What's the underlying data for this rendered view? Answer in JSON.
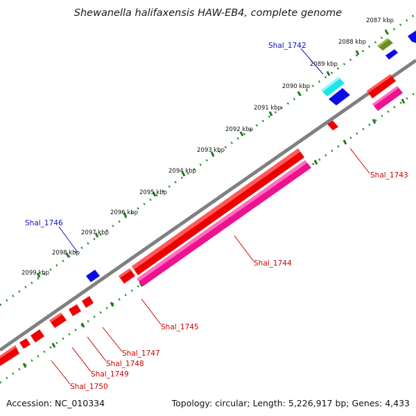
{
  "title": "Shewanella halifaxensis HAW-EB4, complete genome",
  "footer": {
    "accession": "Accession: NC_010334",
    "summary": "Topology: circular; Length: 5,226,917 bp; Genes: 4,433"
  },
  "colors": {
    "backbone": "#7a7a7a",
    "dots": "#2e8b2e",
    "label_blue": "#1010c0",
    "label_red": "#cc0000"
  },
  "scale_ticks": [
    "2087 kbp",
    "2088 kbp",
    "2089 kbp",
    "2090 kbp",
    "2091 kbp",
    "2092 kbp",
    "2093 kbp",
    "2094 kbp",
    "2095 kbp",
    "2096 kbp",
    "2097 kbp",
    "2098 kbp",
    "2099 kbp"
  ],
  "gene_labels": {
    "shal_1742": "Shal_1742",
    "shal_1743": "Shal_1743",
    "shal_1744": "Shal_1744",
    "shal_1745": "Shal_1745",
    "shal_1746": "Shal_1746",
    "shal_1747": "Shal_1747",
    "shal_1748": "Shal_1748",
    "shal_1749": "Shal_1749",
    "shal_1750": "Shal_1750"
  },
  "feature_colors": {
    "red": "#ee0000",
    "magenta": "#ee1190",
    "blue": "#0a0ae6",
    "cyan": "#19e6e6",
    "olive": "#6b8e23"
  }
}
